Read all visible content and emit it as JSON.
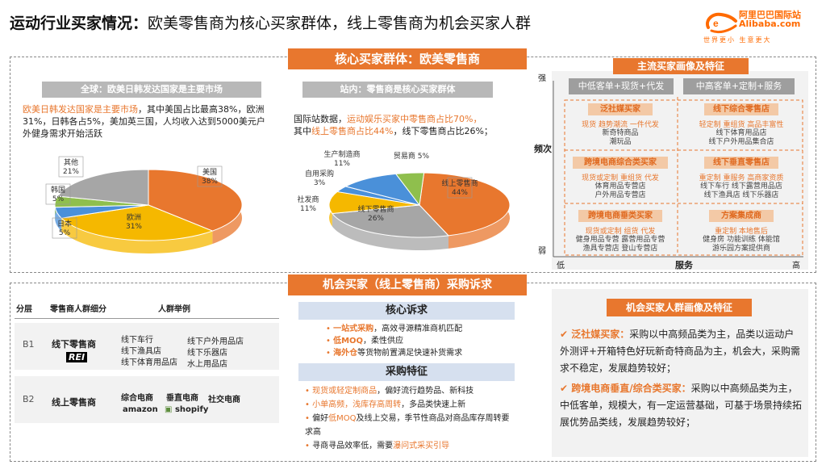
{
  "title": {
    "bold": "运动行业买家情况：",
    "rest": "欧美零售商为核心买家群体，线上零售商为机会买家人群"
  },
  "logo": {
    "cn": "阿里巴巴国际站",
    "en": "Alibaba.com",
    "slogan": "世界更小 生意更大"
  },
  "core_section": {
    "header": "核心买家群体：欧美零售商",
    "global": {
      "header": "全球：欧美日韩发达国家是主要市场",
      "text_hl": "欧美日韩发达国家是主要市场",
      "text_rest": "，其中美国占比最高38%，欧洲31%，日韩各占5%，美加英三国，人均收入达到5000美元户外健身需求开始活跃"
    },
    "onsite": {
      "header": "站内：零售商是核心买家群体",
      "p1a": "国际站数据，",
      "p1b": "运动娱乐买家中零售商占比70%，",
      "p2a": "其中",
      "p2b": "线上零售商占比44%",
      "p2c": "，线下零售商占比26%；"
    }
  },
  "chart_data": [
    {
      "type": "pie",
      "categories": [
        "美国",
        "欧洲",
        "日本",
        "韩国",
        "其他"
      ],
      "values": [
        38,
        31,
        5,
        5,
        21
      ],
      "labels": [
        "美国\n38%",
        "欧洲\n31%",
        "日本\n5%",
        "韩国\n5%",
        "其他\n21%"
      ],
      "colors": [
        "#e8772e",
        "#f5b800",
        "#4a90d9",
        "#8fbf4d",
        "#a6a6a6"
      ]
    },
    {
      "type": "pie",
      "categories": [
        "线上零售商",
        "线下零售商",
        "社发商",
        "自用采购",
        "生产制造商",
        "贸易商"
      ],
      "values": [
        44,
        26,
        11,
        3,
        11,
        5
      ],
      "labels": [
        "线上零售商\n44%",
        "线下零售商\n26%",
        "社发商\n11%",
        "自用采购\n3%",
        "生产制造商\n11%",
        "贸易商 5%"
      ],
      "colors": [
        "#e8772e",
        "#a6a6a6",
        "#f5b800",
        "#4a90d9",
        "#4a90d9",
        "#8fbf4d"
      ]
    }
  ],
  "portrait": {
    "header": "主流买家画像及特征",
    "axis": {
      "y_top": "强",
      "y_label": "频次",
      "y_bottom": "弱",
      "x_left": "低",
      "x_label": "服务",
      "x_right": "高"
    },
    "col_left": "中低客单+现货+代发",
    "col_right": "中高客单+定制+服务",
    "cards": [
      {
        "tag": "泛社媒买家",
        "hl": "现货 趋势潮流 一件代发",
        "sub": "新奇特商品\n潮玩品"
      },
      {
        "tag": "线下综合零售店",
        "hl": "轻定制 重组货 高品丰富性",
        "sub": "线下体育用品店\n线下户外用品集合店"
      },
      {
        "tag": "跨境电商综合类买家",
        "hl": "现货或定制 重组货 代发",
        "sub": "体育用品专营店\n户外用品专营店"
      },
      {
        "tag": "线下垂直零售店",
        "hl": "重定制 重服务 高商家资质",
        "sub": "线下车行 线下露营用品店\n线下渔具店 线下乐器店"
      },
      {
        "tag": "跨境电商垂类买家",
        "hl": "现货或定制 组货 代发",
        "sub": "健身用品专营 露营用品专营\n渔具专营店 登山专营店"
      },
      {
        "tag": "方案集成商",
        "hl": "重定制 本地售后",
        "sub": "健身房 功能训练 体能馆\n游乐园方案提供商"
      }
    ]
  },
  "opportunity_section": {
    "header": "机会买家（线上零售商）采购诉求",
    "table": {
      "headers": [
        "分层",
        "零售商人群细分",
        "人群举例"
      ],
      "rows": [
        {
          "tier": "B1",
          "segment": "线下零售商",
          "logo": "REI",
          "examples": [
            "线下车行",
            "线下户外用品店",
            "线下渔具店",
            "线下乐器店",
            "线下体育用品店",
            "水上用品店"
          ]
        },
        {
          "tier": "B2",
          "segment": "线上零售商",
          "examples": [
            "综合电商",
            "垂直电商",
            "社交电商"
          ],
          "logos": [
            "amazon",
            "shopify"
          ]
        }
      ]
    },
    "core_demand": {
      "header": "核心诉求",
      "items": [
        {
          "hl": "一站式采购",
          "rest": "，高效寻源精准商机匹配"
        },
        {
          "hl": "低MOQ",
          "rest": "，柔性供应"
        },
        {
          "hl": "海外仓",
          "rest": "等货物前置满足快速补货需求"
        }
      ]
    },
    "purchase": {
      "header": "采购特征",
      "items": [
        {
          "hl": "现货或轻定制商品",
          "rest": "，偏好流行趋势品、新科技"
        },
        {
          "hl": "小单高频，浅库存高周转",
          "rest": "，多品类快速上新"
        },
        {
          "pre": "偏好",
          "hl": "低MOQ",
          "rest": "及线上交易，季节性商品对商品库存周转要求高"
        },
        {
          "pre": "寻商寻品效率低，需要",
          "hl": "瀑问式采买引导",
          "rest": ""
        }
      ]
    },
    "features": {
      "header": "机会买家人群画像及特征",
      "p1_tag": "泛社媒买家：",
      "p1_rest": "采购以中高频品类为主，品类以运动户外测评+开箱特色好玩新奇特商品为主，机会大，采购需求不稳定，发展趋势较好；",
      "p2_tag": "跨境电商垂直/综合类买家：",
      "p2_rest": "采购以中高频品类为主，中低客单，规模大，有一定运营基础，可基于场景持续拓展优势品类线，发展趋势较好；"
    }
  }
}
